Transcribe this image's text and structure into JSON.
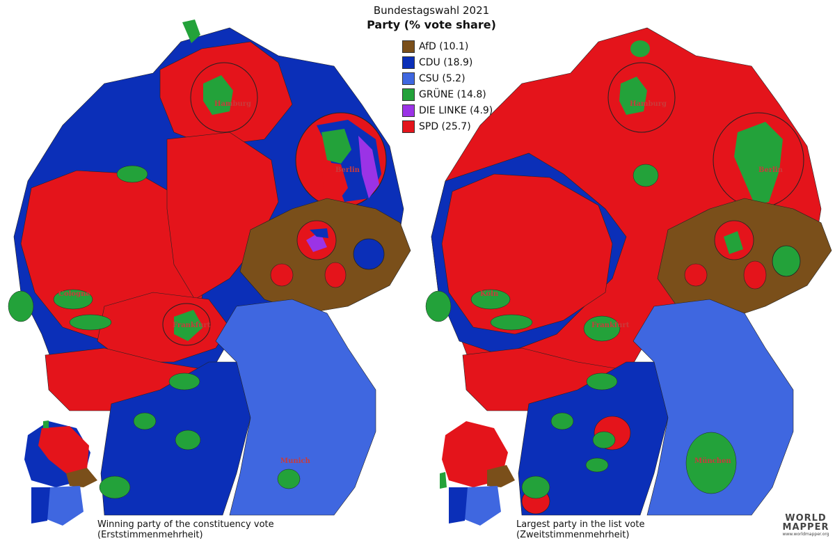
{
  "legend": {
    "title": "Bundestagswahl 2021",
    "subtitle": "Party (% vote share)",
    "items": [
      {
        "label": "AfD (10.1)",
        "color": "#7a4f1a"
      },
      {
        "label": "CDU (18.9)",
        "color": "#0b2fb8"
      },
      {
        "label": "CSU (5.2)",
        "color": "#3f67e0"
      },
      {
        "label": "GRÜNE (14.8)",
        "color": "#23a23a"
      },
      {
        "label": "DIE LINKE (4.9)",
        "color": "#9b33e6"
      },
      {
        "label": "SPD (25.7)",
        "color": "#e4141b"
      }
    ]
  },
  "maps": {
    "left": {
      "caption_line1": "Winning party of the constituency vote",
      "caption_line2": "(Erststimmenmehrheit)",
      "cities": [
        "Hamburg",
        "Berlin",
        "Cologne",
        "Frankfurt",
        "Munich"
      ]
    },
    "right": {
      "caption_line1": "Largest party in the list vote",
      "caption_line2": "(Zweitstimmenmehrheit)",
      "cities": [
        "Hamburg",
        "Berlin",
        "Köln",
        "Frankfurt",
        "München"
      ]
    }
  },
  "logo": {
    "line1": "WORLD",
    "line2": "MAPPER",
    "url": "www.worldmapper.org"
  }
}
